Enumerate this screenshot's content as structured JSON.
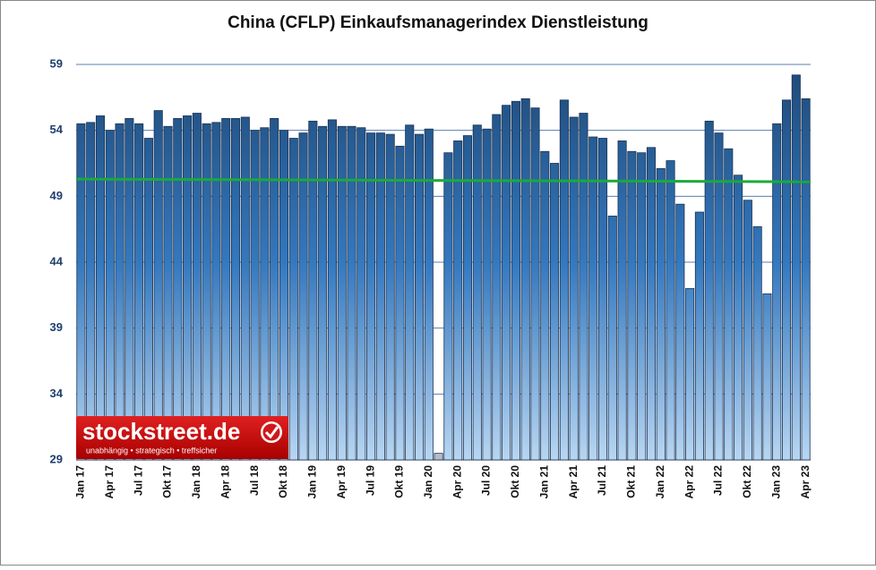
{
  "chart_data": {
    "type": "bar",
    "title": "China (CFLP) Einkaufsmanagerindex Dienstleistung",
    "categories": [
      "Jan 17",
      null,
      null,
      "Apr 17",
      null,
      null,
      "Jul 17",
      null,
      null,
      "Okt 17",
      null,
      null,
      "Jan 18",
      null,
      null,
      "Apr 18",
      null,
      null,
      "Jul 18",
      null,
      null,
      "Okt 18",
      null,
      null,
      "Jan 19",
      null,
      null,
      "Apr 19",
      null,
      null,
      "Jul 19",
      null,
      null,
      "Okt 19",
      null,
      null,
      "Jan 20",
      null,
      null,
      "Apr 20",
      null,
      null,
      "Jul 20",
      null,
      null,
      "Okt 20",
      null,
      null,
      "Jan 21",
      null,
      null,
      "Apr 21",
      null,
      null,
      "Jul 21",
      null,
      null,
      "Okt 21",
      null,
      null,
      "Jan 22",
      null,
      null,
      "Apr 22",
      null,
      null,
      "Jul 22",
      null,
      null,
      "Okt 22",
      null,
      null,
      "Jan 23",
      null,
      null,
      "Apr 23"
    ],
    "values": [
      54.5,
      54.6,
      55.1,
      54.0,
      54.5,
      54.9,
      54.5,
      53.4,
      55.5,
      54.3,
      54.9,
      55.1,
      55.3,
      54.5,
      54.6,
      54.9,
      54.9,
      55.0,
      54.0,
      54.2,
      54.9,
      54.0,
      53.4,
      53.8,
      54.7,
      54.3,
      54.8,
      54.3,
      54.3,
      54.2,
      53.8,
      53.8,
      53.7,
      52.8,
      54.4,
      53.7,
      54.1,
      29.5,
      52.3,
      53.2,
      53.6,
      54.4,
      54.1,
      55.2,
      55.9,
      56.2,
      56.4,
      55.7,
      52.4,
      51.5,
      56.3,
      55.0,
      55.3,
      53.5,
      53.4,
      47.5,
      53.2,
      52.4,
      52.3,
      52.7,
      51.1,
      51.7,
      48.4,
      42.0,
      47.8,
      54.7,
      53.8,
      52.6,
      50.6,
      48.7,
      46.7,
      41.6,
      54.5,
      56.3,
      58.2,
      56.4
    ],
    "color": "#1f4e79",
    "highlight": {
      "index": 37,
      "color": "#b4bcc8"
    },
    "trend": [
      50.3,
      50.1
    ],
    "trend_color": "#1aaa3c",
    "ylim": [
      29,
      59
    ],
    "yticks": [
      29,
      34,
      39,
      44,
      49,
      54,
      59
    ],
    "grid": true,
    "logo": {
      "name": "stockstreet.de",
      "tagline": "unabhängig • strategisch • treffsicher"
    }
  }
}
